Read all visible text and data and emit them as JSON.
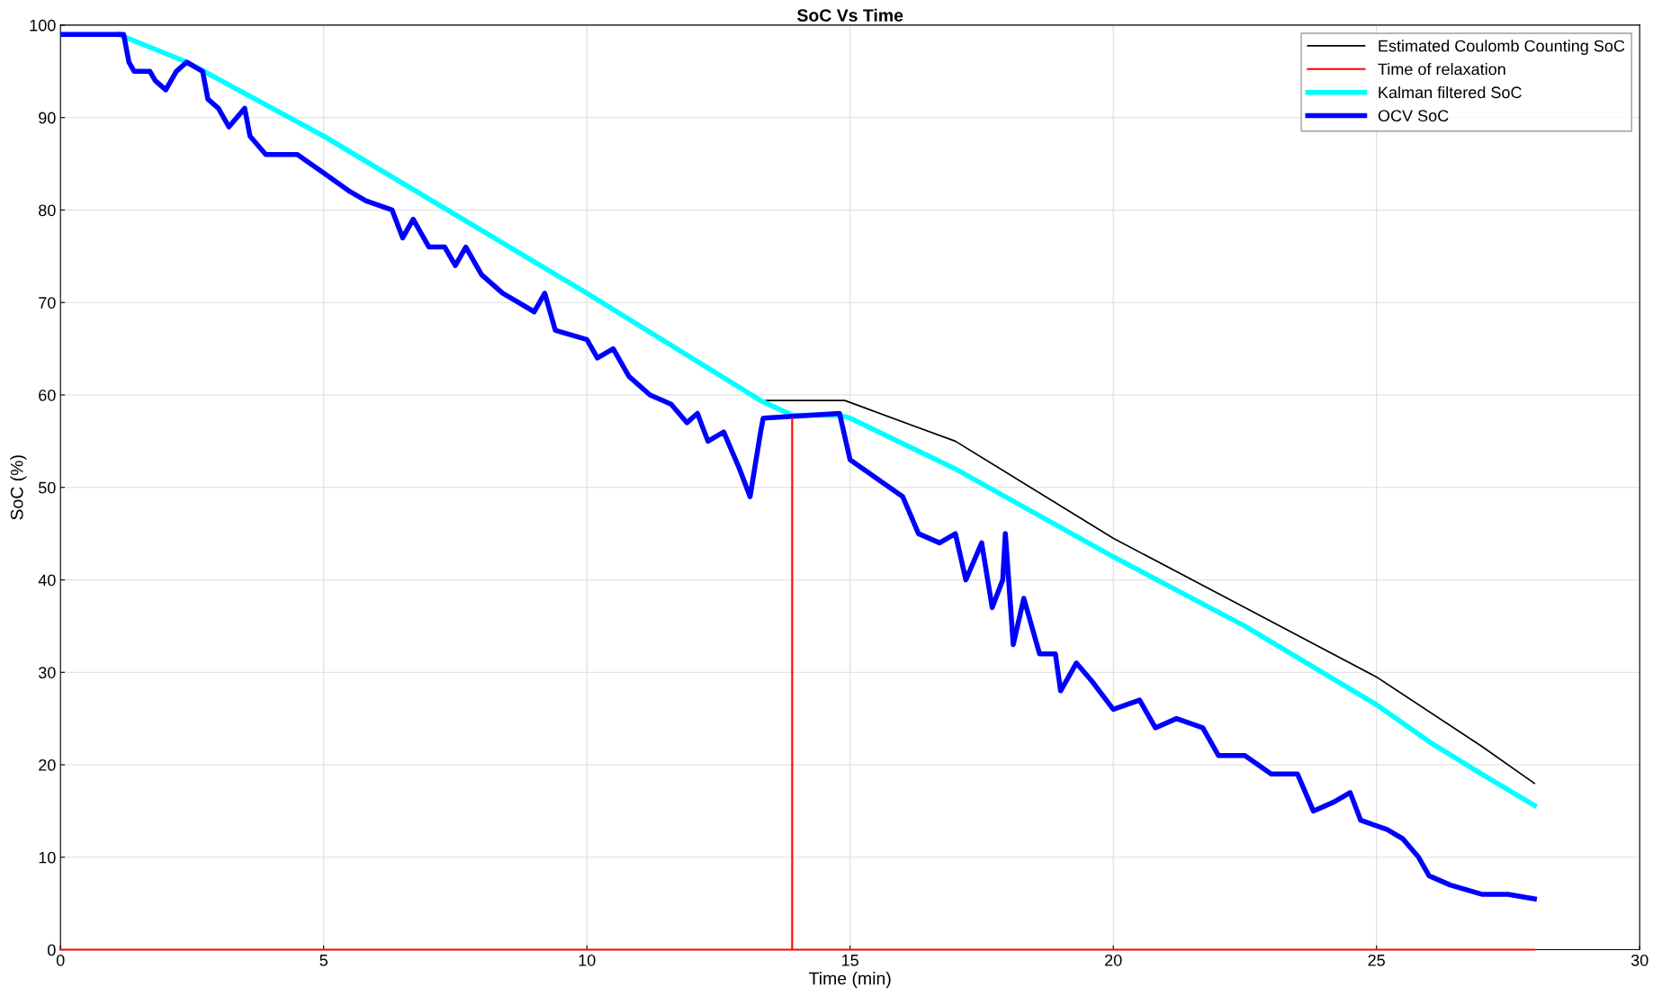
{
  "chart_data": {
    "type": "line",
    "title": "SoC Vs Time",
    "xlabel": "Time (min)",
    "ylabel": "SoC (%)",
    "xlim": [
      0,
      30
    ],
    "xticks": [
      0,
      5,
      10,
      15,
      20,
      25,
      30
    ],
    "ylim": [
      0,
      100
    ],
    "yticks": [
      0,
      10,
      20,
      30,
      40,
      50,
      60,
      70,
      80,
      90,
      100
    ],
    "grid": true,
    "legend": "top right",
    "series": [
      {
        "name": "Estimated Coulomb Counting SoC",
        "color": "#000000",
        "x": [
          13.4,
          14.9,
          17,
          20,
          22.5,
          25,
          27,
          28
        ],
        "values": [
          59.4,
          59.4,
          55,
          44.5,
          37,
          29.5,
          22,
          18
        ]
      },
      {
        "name": "Time of relaxation",
        "color": "#ff0000",
        "x": [
          0,
          13.9,
          13.9,
          13.9,
          28
        ],
        "values": [
          0,
          0,
          57.5,
          0,
          0
        ]
      },
      {
        "name": "Kalman filtered SoC",
        "color": "#00ffff",
        "x": [
          1.1,
          2.4,
          5,
          10,
          13.3,
          13.9,
          14.8,
          15,
          17,
          20,
          22.5,
          25,
          26,
          27,
          28
        ],
        "values": [
          99,
          96,
          88,
          71,
          59.4,
          57.8,
          57.8,
          57.5,
          52,
          42.5,
          35,
          26.5,
          22.5,
          19,
          15.6
        ]
      },
      {
        "name": "OCV SoC",
        "color": "#0000ff",
        "x": [
          0,
          1.2,
          1.3,
          1.4,
          1.7,
          1.8,
          2,
          2.2,
          2.4,
          2.7,
          2.8,
          3,
          3.2,
          3.5,
          3.6,
          3.9,
          4.5,
          5,
          5.5,
          5.8,
          6.3,
          6.5,
          6.7,
          7,
          7.3,
          7.5,
          7.7,
          8,
          8.4,
          8.7,
          9,
          9.2,
          9.4,
          10,
          10.2,
          10.5,
          10.8,
          11.2,
          11.6,
          11.9,
          12.1,
          12.3,
          12.6,
          12.9,
          13.1,
          13.3,
          13.35,
          14.8,
          15,
          15.5,
          16,
          16.3,
          16.7,
          17,
          17.2,
          17.5,
          17.7,
          17.9,
          17.95,
          18.1,
          18.3,
          18.6,
          18.9,
          19,
          19.3,
          19.6,
          20,
          20.5,
          20.8,
          21.2,
          21.7,
          22,
          22.5,
          23,
          23.5,
          23.8,
          24.2,
          24.5,
          24.7,
          25.2,
          25.5,
          25.8,
          26,
          26.4,
          27,
          27.5,
          28
        ],
        "values": [
          99,
          99,
          96,
          95,
          95,
          94,
          93,
          95,
          96,
          95,
          92,
          91,
          89,
          91,
          88,
          86,
          86,
          84,
          82,
          81,
          80,
          77,
          79,
          76,
          76,
          74,
          76,
          73,
          71,
          70,
          69,
          71,
          67,
          66,
          64,
          65,
          62,
          60,
          59,
          57,
          58,
          55,
          56,
          52,
          49,
          56,
          57.5,
          58,
          53,
          51,
          49,
          45,
          44,
          45,
          40,
          44,
          37,
          40,
          45,
          33,
          38,
          32,
          32,
          28,
          31,
          29,
          26,
          27,
          24,
          25,
          24,
          21,
          21,
          19,
          19,
          15,
          16,
          17,
          14,
          13,
          12,
          10,
          8,
          7,
          6,
          6,
          5.5
        ]
      }
    ]
  }
}
